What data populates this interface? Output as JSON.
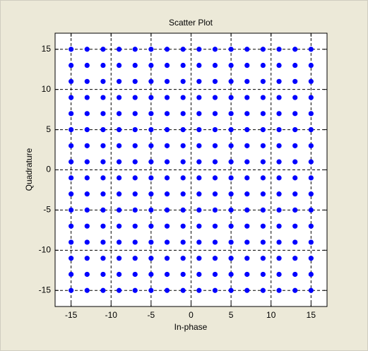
{
  "chart_data": {
    "type": "scatter",
    "title": "Scatter Plot",
    "x_label": "In-phase",
    "y_label": "Quadrature",
    "x": [
      -15,
      -15,
      -15,
      -15,
      -15,
      -15,
      -15,
      -15,
      -15,
      -15,
      -15,
      -15,
      -15,
      -15,
      -15,
      -15,
      -13,
      -13,
      -13,
      -13,
      -13,
      -13,
      -13,
      -13,
      -13,
      -13,
      -13,
      -13,
      -13,
      -13,
      -13,
      -13,
      -11,
      -11,
      -11,
      -11,
      -11,
      -11,
      -11,
      -11,
      -11,
      -11,
      -11,
      -11,
      -11,
      -11,
      -11,
      -11,
      -9,
      -9,
      -9,
      -9,
      -9,
      -9,
      -9,
      -9,
      -9,
      -9,
      -9,
      -9,
      -9,
      -9,
      -9,
      -9,
      -7,
      -7,
      -7,
      -7,
      -7,
      -7,
      -7,
      -7,
      -7,
      -7,
      -7,
      -7,
      -7,
      -7,
      -7,
      -7,
      -5,
      -5,
      -5,
      -5,
      -5,
      -5,
      -5,
      -5,
      -5,
      -5,
      -5,
      -5,
      -5,
      -5,
      -5,
      -5,
      -3,
      -3,
      -3,
      -3,
      -3,
      -3,
      -3,
      -3,
      -3,
      -3,
      -3,
      -3,
      -3,
      -3,
      -3,
      -3,
      -1,
      -1,
      -1,
      -1,
      -1,
      -1,
      -1,
      -1,
      -1,
      -1,
      -1,
      -1,
      -1,
      -1,
      -1,
      -1,
      1,
      1,
      1,
      1,
      1,
      1,
      1,
      1,
      1,
      1,
      1,
      1,
      1,
      1,
      1,
      1,
      3,
      3,
      3,
      3,
      3,
      3,
      3,
      3,
      3,
      3,
      3,
      3,
      3,
      3,
      3,
      3,
      5,
      5,
      5,
      5,
      5,
      5,
      5,
      5,
      5,
      5,
      5,
      5,
      5,
      5,
      5,
      5,
      7,
      7,
      7,
      7,
      7,
      7,
      7,
      7,
      7,
      7,
      7,
      7,
      7,
      7,
      7,
      7,
      9,
      9,
      9,
      9,
      9,
      9,
      9,
      9,
      9,
      9,
      9,
      9,
      9,
      9,
      9,
      9,
      11,
      11,
      11,
      11,
      11,
      11,
      11,
      11,
      11,
      11,
      11,
      11,
      11,
      11,
      11,
      11,
      13,
      13,
      13,
      13,
      13,
      13,
      13,
      13,
      13,
      13,
      13,
      13,
      13,
      13,
      13,
      13,
      15,
      15,
      15,
      15,
      15,
      15,
      15,
      15,
      15,
      15,
      15,
      15,
      15,
      15,
      15,
      15
    ],
    "values": [
      15,
      13,
      11,
      9,
      7,
      5,
      3,
      1,
      -1,
      -3,
      -5,
      -7,
      -9,
      -11,
      -13,
      -15,
      15,
      13,
      11,
      9,
      7,
      5,
      3,
      1,
      -1,
      -3,
      -5,
      -7,
      -9,
      -11,
      -13,
      -15,
      15,
      13,
      11,
      9,
      7,
      5,
      3,
      1,
      -1,
      -3,
      -5,
      -7,
      -9,
      -11,
      -13,
      -15,
      15,
      13,
      11,
      9,
      7,
      5,
      3,
      1,
      -1,
      -3,
      -5,
      -7,
      -9,
      -11,
      -13,
      -15,
      15,
      13,
      11,
      9,
      7,
      5,
      3,
      1,
      -1,
      -3,
      -5,
      -7,
      -9,
      -11,
      -13,
      -15,
      15,
      13,
      11,
      9,
      7,
      5,
      3,
      1,
      -1,
      -3,
      -5,
      -7,
      -9,
      -11,
      -13,
      -15,
      15,
      13,
      11,
      9,
      7,
      5,
      3,
      1,
      -1,
      -3,
      -5,
      -7,
      -9,
      -11,
      -13,
      -15,
      15,
      13,
      11,
      9,
      7,
      5,
      3,
      1,
      -1,
      -3,
      -5,
      -7,
      -9,
      -11,
      -13,
      -15,
      15,
      13,
      11,
      9,
      7,
      5,
      3,
      1,
      -1,
      -3,
      -5,
      -7,
      -9,
      -11,
      -13,
      -15,
      15,
      13,
      11,
      9,
      7,
      5,
      3,
      1,
      -1,
      -3,
      -5,
      -7,
      -9,
      -11,
      -13,
      -15,
      15,
      13,
      11,
      9,
      7,
      5,
      3,
      1,
      -1,
      -3,
      -5,
      -7,
      -9,
      -11,
      -13,
      -15,
      15,
      13,
      11,
      9,
      7,
      5,
      3,
      1,
      -1,
      -3,
      -5,
      -7,
      -9,
      -11,
      -13,
      -15,
      15,
      13,
      11,
      9,
      7,
      5,
      3,
      1,
      -1,
      -3,
      -5,
      -7,
      -9,
      -11,
      -13,
      -15,
      15,
      13,
      11,
      9,
      7,
      5,
      3,
      1,
      -1,
      -3,
      -5,
      -7,
      -9,
      -11,
      -13,
      -15,
      15,
      13,
      11,
      9,
      7,
      5,
      3,
      1,
      -1,
      -3,
      -5,
      -7,
      -9,
      -11,
      -13,
      -15,
      15,
      13,
      11,
      9,
      7,
      5,
      3,
      1,
      -1,
      -3,
      -5,
      -7,
      -9,
      -11,
      -13,
      -15
    ],
    "color": "#0000ff",
    "xlim": [
      -17,
      17
    ],
    "ylim": [
      -17,
      17
    ],
    "xticks": [
      -15,
      -10,
      -5,
      0,
      5,
      10,
      15
    ],
    "yticks": [
      -15,
      -10,
      -5,
      0,
      5,
      10,
      15
    ],
    "grid": true
  }
}
